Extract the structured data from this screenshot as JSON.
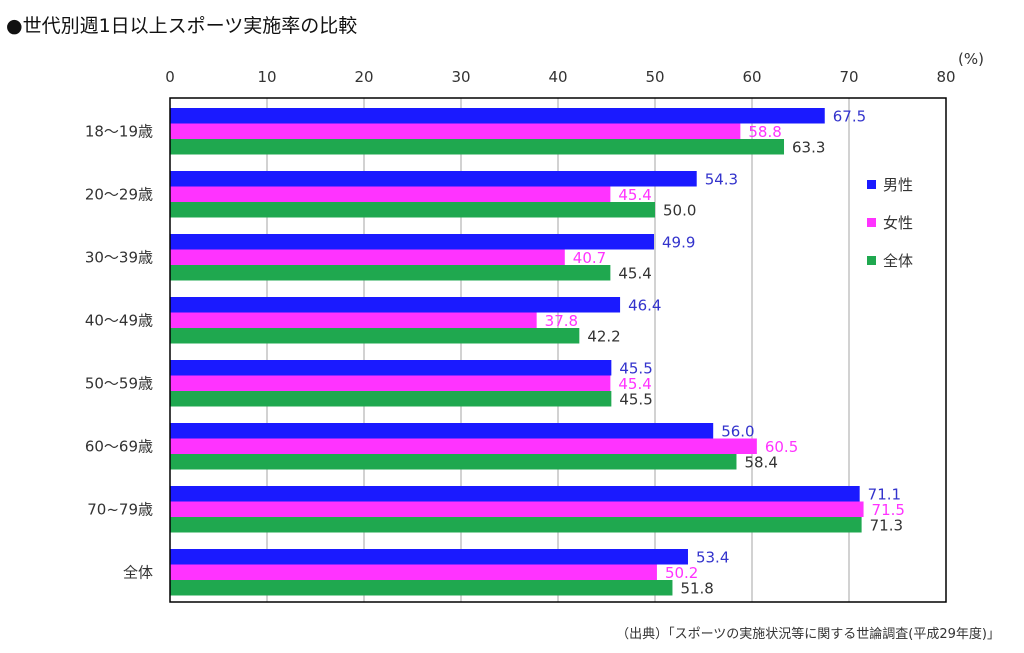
{
  "chart_data": {
    "type": "bar",
    "orientation": "horizontal",
    "title": "●世代別週1日以上スポーツ実施率の比較",
    "unit_label": "(%)",
    "source": "（出典）「スポーツの実施状況等に関する世論調査(平成29年度)」",
    "xlim": [
      0,
      80
    ],
    "ticks": [
      0,
      10,
      20,
      30,
      40,
      50,
      60,
      70,
      80
    ],
    "grid": true,
    "legend_position": "right",
    "categories": [
      "18～19歳",
      "20～29歳",
      "30～39歳",
      "40～49歳",
      "50～59歳",
      "60～69歳",
      "70~79歳",
      "全体"
    ],
    "series": [
      {
        "name": "男性",
        "color": "#1a1aff",
        "label_color": "#3333cc",
        "values": [
          67.5,
          54.3,
          49.9,
          46.4,
          45.5,
          56.0,
          71.1,
          53.4
        ],
        "labels": [
          "67.5",
          "54.3",
          "49.9",
          "46.4",
          "45.5",
          "56.0",
          "71.1",
          "53.4"
        ]
      },
      {
        "name": "女性",
        "color": "#ff33ff",
        "label_color": "#ff33ff",
        "values": [
          58.8,
          45.4,
          40.7,
          37.8,
          45.4,
          60.5,
          71.5,
          50.2
        ],
        "labels": [
          "58.8",
          "45.4",
          "40.7",
          "37.8",
          "45.4",
          "60.5",
          "71.5",
          "50.2"
        ]
      },
      {
        "name": "全体",
        "color": "#1fa84f",
        "label_color": "#333333",
        "values": [
          63.3,
          50.0,
          45.4,
          42.2,
          45.5,
          58.4,
          71.3,
          51.8
        ],
        "labels": [
          "63.3",
          "50.0",
          "45.4",
          "42.2",
          "45.5",
          "58.4",
          "71.3",
          "51.8"
        ]
      }
    ]
  }
}
